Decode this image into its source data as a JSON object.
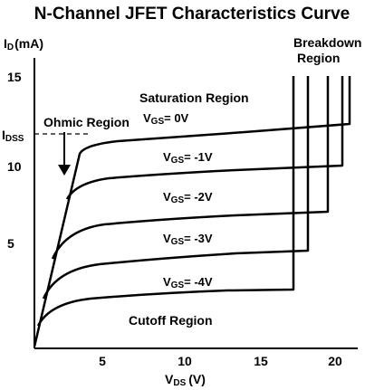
{
  "title": "N-Channel JFET Characteristics Curve",
  "y_axis": {
    "symbol": "I",
    "subscript": "D",
    "unit": "(mA)"
  },
  "x_axis": {
    "symbol": "V",
    "subscript": "DS",
    "unit": "(V)"
  },
  "idss": {
    "symbol": "I",
    "subscript": "DSS"
  },
  "x_ticks": [
    "5",
    "10",
    "15",
    "20"
  ],
  "y_ticks": [
    "5",
    "10",
    "15"
  ],
  "regions": {
    "ohmic": "Ohmic Region",
    "saturation": "Saturation Region",
    "cutoff": "Cutoff Region",
    "breakdown_line1": "Breakdown",
    "breakdown_line2": "Region"
  },
  "curves": [
    {
      "prefix": "V",
      "subscript": "GS",
      "value": "= 0V"
    },
    {
      "prefix": "V",
      "subscript": "GS",
      "value": "= -1V"
    },
    {
      "prefix": "V",
      "subscript": "GS",
      "value": "= -2V"
    },
    {
      "prefix": "V",
      "subscript": "GS",
      "value": "= -3V"
    },
    {
      "prefix": "V",
      "subscript": "GS",
      "value": "= -4V"
    }
  ],
  "colors": {
    "line": "#000000",
    "background": "#ffffff"
  }
}
